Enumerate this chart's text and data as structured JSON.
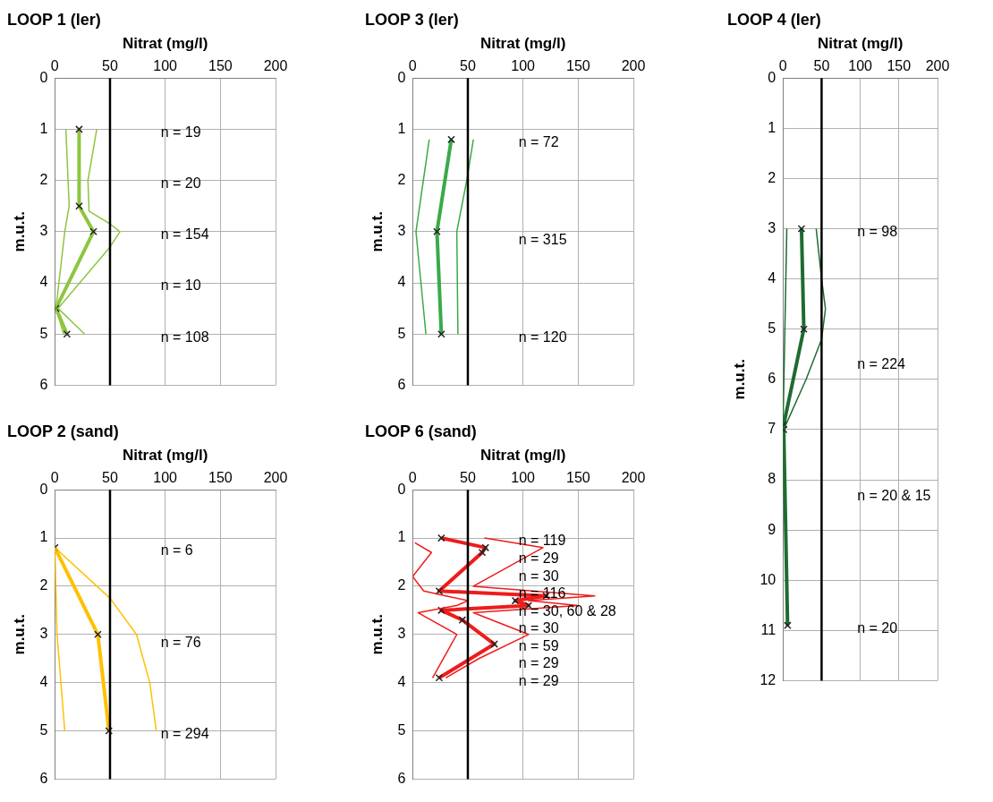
{
  "chart_data": [
    {
      "type": "line",
      "title": "LOOP 1 (ler)",
      "xlabel": "Nitrat (mg/l)",
      "ylabel": "m.u.t.",
      "xlim": [
        0,
        200
      ],
      "xticks": [
        0,
        50,
        100,
        150,
        200
      ],
      "ylim": [
        6,
        0
      ],
      "yticks": [
        0,
        1,
        2,
        3,
        4,
        5,
        6
      ],
      "grid": true,
      "series": [
        {
          "color": "#8dc63f",
          "marker": "none",
          "x": [
            10,
            12,
            13,
            9,
            1,
            8
          ],
          "values": [
            1,
            2,
            2.5,
            3,
            4.5,
            5
          ]
        },
        {
          "color": "#8dc63f",
          "marker": "none",
          "x": [
            38,
            30,
            31,
            50,
            59,
            50,
            3,
            27
          ],
          "values": [
            1,
            2,
            2.6,
            2.85,
            3,
            3.3,
            4.5,
            5
          ]
        },
        {
          "color": "#8dc63f",
          "marker": "cross",
          "x": [
            22,
            22,
            35,
            1,
            11
          ],
          "values": [
            1,
            2.5,
            3,
            4.5,
            5
          ]
        }
      ],
      "ref_lines": [
        {
          "axis": "x",
          "value": 50,
          "color": "#000000"
        }
      ],
      "annotations": [
        "n = 19",
        "n = 20",
        "n = 154",
        "n = 10",
        "n = 108"
      ]
    },
    {
      "type": "line",
      "title": "LOOP 3 (ler)",
      "xlabel": "Nitrat (mg/l)",
      "ylabel": "m.u.t.",
      "xlim": [
        0,
        200
      ],
      "xticks": [
        0,
        50,
        100,
        150,
        200
      ],
      "ylim": [
        6,
        0
      ],
      "yticks": [
        0,
        1,
        2,
        3,
        4,
        5,
        6
      ],
      "grid": true,
      "series": [
        {
          "color": "#3aaa48",
          "marker": "none",
          "x": [
            15,
            3,
            12
          ],
          "values": [
            1.2,
            3,
            5
          ]
        },
        {
          "color": "#3aaa48",
          "marker": "none",
          "x": [
            55,
            49,
            40,
            41
          ],
          "values": [
            1.2,
            2,
            3,
            5
          ]
        },
        {
          "color": "#3aaa48",
          "marker": "cross",
          "x": [
            35,
            22,
            26
          ],
          "values": [
            1.2,
            3,
            5
          ]
        }
      ],
      "ref_lines": [
        {
          "axis": "x",
          "value": 50,
          "color": "#000000"
        }
      ],
      "annotations": [
        "n = 72",
        "n = 315",
        "n = 120"
      ]
    },
    {
      "type": "line",
      "title": "LOOP 4 (ler)",
      "xlabel": "Nitrat (mg/l)",
      "ylabel": "m.u.t.",
      "xlim": [
        0,
        200
      ],
      "xticks": [
        0,
        50,
        100,
        150,
        200
      ],
      "ylim": [
        12,
        0
      ],
      "yticks": [
        0,
        1,
        2,
        3,
        4,
        5,
        6,
        7,
        8,
        9,
        10,
        11,
        12
      ],
      "grid": true,
      "series": [
        {
          "color": "#1e6b30",
          "marker": "none",
          "x": [
            5,
            0
          ],
          "values": [
            3,
            7
          ]
        },
        {
          "color": "#1e6b30",
          "marker": "none",
          "x": [
            43,
            50,
            55,
            50,
            30,
            1
          ],
          "values": [
            3,
            4,
            4.6,
            5.2,
            6,
            7
          ]
        },
        {
          "color": "#1e6b30",
          "marker": "cross",
          "x": [
            24,
            27,
            1,
            1,
            6
          ],
          "values": [
            3,
            5,
            6.9,
            7,
            10.9
          ]
        }
      ],
      "ref_lines": [
        {
          "axis": "x",
          "value": 50,
          "color": "#000000"
        }
      ],
      "annotations": [
        "n = 98",
        "n = 224",
        "n = 20 & 15",
        "n = 20"
      ]
    },
    {
      "type": "line",
      "title": "LOOP 2 (sand)",
      "xlabel": "Nitrat (mg/l)",
      "ylabel": "m.u.t.",
      "xlim": [
        0,
        200
      ],
      "xticks": [
        0,
        50,
        100,
        150,
        200
      ],
      "ylim": [
        6,
        0
      ],
      "yticks": [
        0,
        1,
        2,
        3,
        4,
        5,
        6
      ],
      "grid": true,
      "series": [
        {
          "color": "#ffc000",
          "marker": "none",
          "x": [
            0,
            2,
            9
          ],
          "values": [
            1.2,
            3,
            5
          ]
        },
        {
          "color": "#ffc000",
          "marker": "none",
          "x": [
            0,
            50,
            74,
            86,
            92
          ],
          "values": [
            1.2,
            2.25,
            3,
            4,
            5
          ]
        },
        {
          "color": "#ffc000",
          "marker": "cross",
          "x": [
            0,
            39,
            49
          ],
          "values": [
            1.2,
            3,
            5
          ]
        }
      ],
      "ref_lines": [
        {
          "axis": "x",
          "value": 50,
          "color": "#000000"
        }
      ],
      "annotations": [
        "n = 6",
        "n = 76",
        "n = 294"
      ]
    },
    {
      "type": "line",
      "title": "LOOP 6 (sand)",
      "xlabel": "Nitrat (mg/l)",
      "ylabel": "m.u.t.",
      "xlim": [
        0,
        200
      ],
      "xticks": [
        0,
        50,
        100,
        150,
        200
      ],
      "ylim": [
        6,
        0
      ],
      "yticks": [
        0,
        1,
        2,
        3,
        4,
        5,
        6
      ],
      "grid": true,
      "series": [
        {
          "color": "#ee1c1c",
          "marker": "none",
          "x": [
            2,
            17,
            0,
            10,
            30,
            50,
            40,
            5,
            40,
            18
          ],
          "values": [
            1.1,
            1.3,
            1.8,
            2.1,
            2.2,
            2.3,
            2.4,
            2.55,
            3,
            3.9
          ]
        },
        {
          "color": "#ee1c1c",
          "marker": "none",
          "x": [
            65,
            118,
            55,
            165,
            105,
            150,
            55,
            105,
            60,
            30
          ],
          "values": [
            1,
            1.2,
            2,
            2.2,
            2.3,
            2.4,
            2.55,
            3,
            3.5,
            3.9
          ]
        },
        {
          "color": "#ee1c1c",
          "marker": "cross",
          "x": [
            26,
            66,
            63,
            24,
            121,
            93,
            105,
            26,
            45,
            74,
            24
          ],
          "values": [
            1,
            1.2,
            1.3,
            2.1,
            2.2,
            2.3,
            2.4,
            2.5,
            2.7,
            3.2,
            3.9
          ]
        }
      ],
      "ref_lines": [
        {
          "axis": "x",
          "value": 50,
          "color": "#000000"
        }
      ],
      "annotations": [
        "n = 119",
        "n = 29",
        "n = 30",
        "n = 116",
        "n = 30, 60 & 28",
        "n = 30",
        "n = 59",
        "n = 29",
        "n = 29"
      ]
    }
  ]
}
